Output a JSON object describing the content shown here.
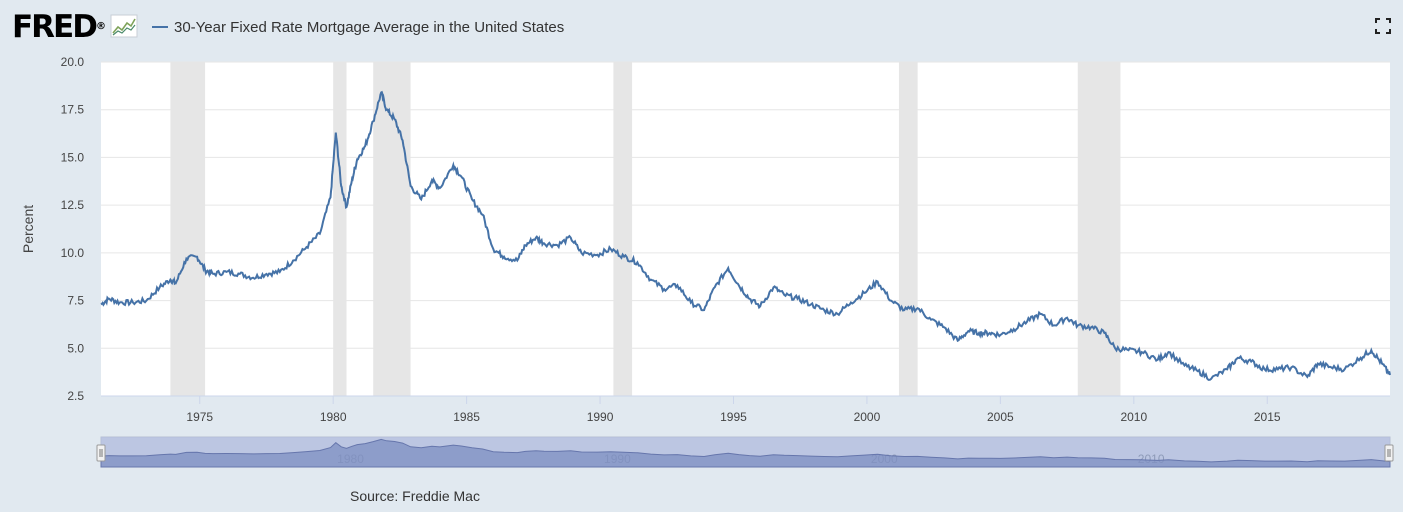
{
  "header": {
    "logo_text": "FRED",
    "logo_mark": "®",
    "fullscreen_icon": "fullscreen-icon"
  },
  "chart_data": {
    "type": "line",
    "ylabel": "Percent",
    "ylim": [
      2.5,
      20.0
    ],
    "yticks": [
      2.5,
      5.0,
      7.5,
      10.0,
      12.5,
      15.0,
      17.5,
      20.0
    ],
    "ytick_labels": [
      "2.5",
      "5.0",
      "7.5",
      "10.0",
      "12.5",
      "15.0",
      "17.5",
      "20.0"
    ],
    "xlim": [
      1971.3,
      2019.6
    ],
    "xticks": [
      1975,
      1980,
      1985,
      1990,
      1995,
      2000,
      2005,
      2010,
      2015
    ],
    "xtick_labels": [
      "1975",
      "1980",
      "1985",
      "1990",
      "1995",
      "2000",
      "2005",
      "2010",
      "2015"
    ],
    "navigator_labels": [
      "1980",
      "1990",
      "2000",
      "2010"
    ],
    "grid": true,
    "legend_position": "top-left",
    "line_color": "#4572a7",
    "recession_color": "#e6e6e6",
    "recessions": [
      [
        1973.9,
        1975.2
      ],
      [
        1980.0,
        1980.5
      ],
      [
        1981.5,
        1982.9
      ],
      [
        1990.5,
        1991.2
      ],
      [
        2001.2,
        2001.9
      ],
      [
        2007.9,
        2009.5
      ]
    ],
    "series": [
      {
        "name": "30-Year Fixed Rate Mortgage Average in the United States",
        "x": [
          1971.3,
          1971.6,
          1972.0,
          1972.5,
          1973.0,
          1973.5,
          1973.9,
          1974.1,
          1974.5,
          1974.9,
          1975.2,
          1975.5,
          1976.0,
          1976.5,
          1977.0,
          1977.5,
          1978.0,
          1978.5,
          1979.0,
          1979.5,
          1979.9,
          1980.1,
          1980.3,
          1980.5,
          1980.7,
          1980.9,
          1981.2,
          1981.5,
          1981.8,
          1982.0,
          1982.3,
          1982.6,
          1982.9,
          1983.3,
          1983.7,
          1984.0,
          1984.5,
          1984.8,
          1985.2,
          1985.6,
          1986.0,
          1986.4,
          1986.9,
          1987.2,
          1987.6,
          1987.9,
          1988.4,
          1988.9,
          1989.3,
          1989.9,
          1990.4,
          1990.9,
          1991.4,
          1991.9,
          1992.4,
          1992.9,
          1993.4,
          1993.9,
          1994.3,
          1994.8,
          1995.2,
          1995.6,
          1996.0,
          1996.5,
          1996.9,
          1997.4,
          1997.9,
          1998.4,
          1998.9,
          1999.4,
          1999.9,
          2000.4,
          2000.9,
          2001.4,
          2001.9,
          2002.4,
          2002.9,
          2003.4,
          2003.8,
          2004.2,
          2004.6,
          2005.0,
          2005.5,
          2006.0,
          2006.5,
          2007.0,
          2007.5,
          2007.9,
          2008.4,
          2008.9,
          2009.3,
          2009.8,
          2010.3,
          2010.9,
          2011.3,
          2011.9,
          2012.4,
          2012.9,
          2013.5,
          2013.9,
          2014.4,
          2014.9,
          2015.4,
          2015.9,
          2016.5,
          2016.9,
          2017.4,
          2017.9,
          2018.5,
          2018.9,
          2019.3,
          2019.6
        ],
        "values": [
          7.3,
          7.6,
          7.4,
          7.4,
          7.5,
          8.2,
          8.6,
          8.4,
          9.7,
          9.8,
          9.1,
          8.9,
          9.0,
          8.9,
          8.7,
          8.9,
          9.0,
          9.6,
          10.3,
          11.0,
          12.9,
          16.3,
          13.5,
          12.4,
          13.8,
          14.9,
          15.6,
          16.9,
          18.4,
          17.5,
          17.0,
          15.9,
          13.5,
          12.8,
          13.8,
          13.4,
          14.6,
          14.0,
          12.8,
          12.0,
          10.2,
          9.8,
          9.6,
          10.4,
          10.8,
          10.5,
          10.4,
          10.8,
          10.0,
          9.9,
          10.2,
          9.8,
          9.5,
          8.6,
          8.1,
          8.3,
          7.4,
          7.0,
          8.2,
          9.2,
          8.3,
          7.6,
          7.2,
          8.2,
          7.8,
          7.6,
          7.3,
          7.0,
          6.8,
          7.4,
          7.9,
          8.5,
          7.5,
          7.0,
          7.1,
          6.5,
          6.1,
          5.4,
          5.9,
          5.8,
          5.8,
          5.7,
          6.0,
          6.4,
          6.8,
          6.2,
          6.6,
          6.2,
          6.1,
          5.8,
          5.0,
          4.9,
          4.8,
          4.4,
          4.8,
          4.1,
          3.8,
          3.4,
          3.9,
          4.5,
          4.3,
          3.9,
          3.9,
          4.0,
          3.5,
          4.2,
          4.0,
          3.9,
          4.5,
          4.9,
          4.2,
          3.6
        ]
      }
    ],
    "source": "Source: Freddie Mac"
  }
}
